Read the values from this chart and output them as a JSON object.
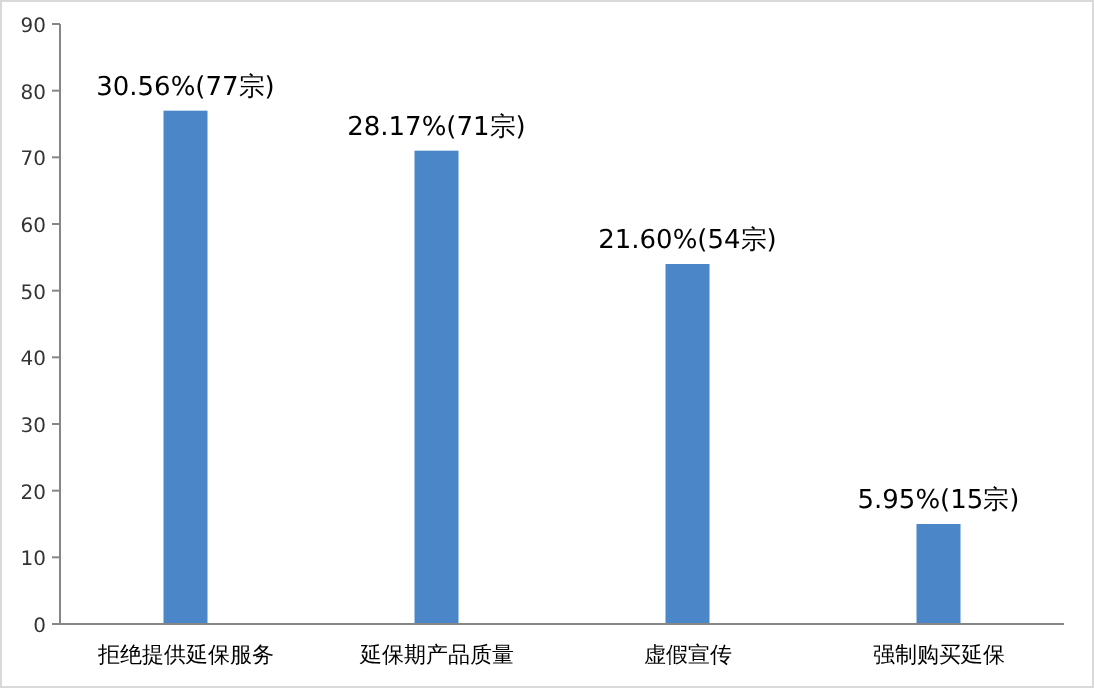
{
  "chart_data": {
    "type": "bar",
    "categories": [
      "拒绝提供延保服务",
      "延保期产品质量",
      "虚假宣传",
      "强制购买延保"
    ],
    "values": [
      77,
      71,
      54,
      15
    ],
    "value_labels": [
      "30.56%(77宗)",
      "28.17%(71宗)",
      "21.60%(54宗)",
      "5.95%(15宗)"
    ],
    "color": "#4a86c8",
    "ylim": [
      0,
      90
    ],
    "yticks": [
      0,
      10,
      20,
      30,
      40,
      50,
      60,
      70,
      80,
      90
    ],
    "grid": false
  }
}
